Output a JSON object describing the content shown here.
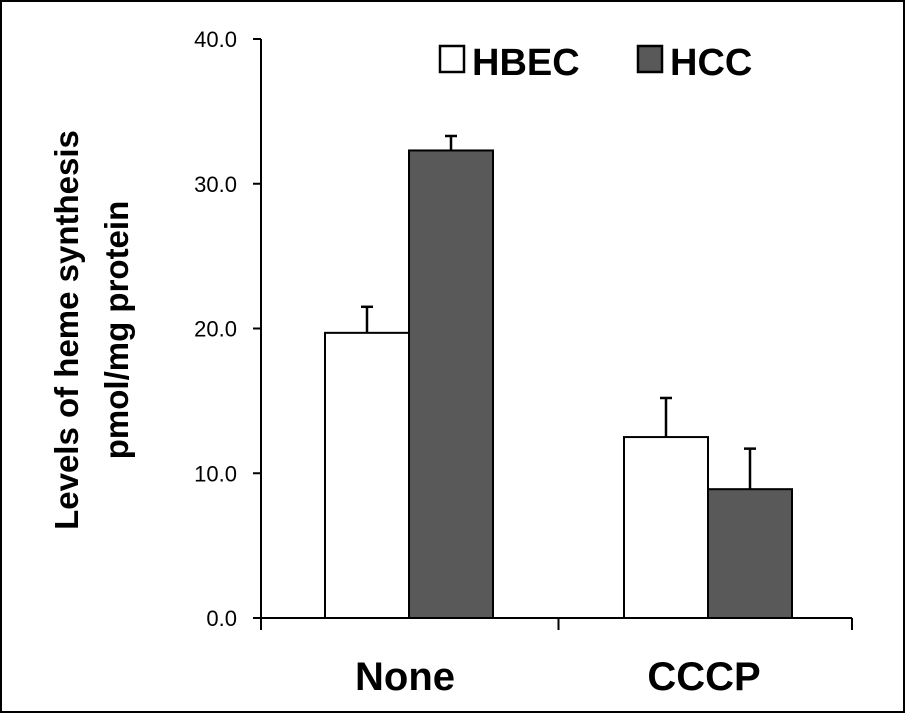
{
  "chart_data": {
    "type": "bar",
    "categories": [
      "None",
      "CCCP"
    ],
    "series": [
      {
        "name": "HBEC",
        "values": [
          19.7,
          12.5
        ],
        "errors": [
          1.8,
          2.7
        ],
        "color": "#ffffff"
      },
      {
        "name": "HCC",
        "values": [
          32.3,
          8.9
        ],
        "errors": [
          1.0,
          2.8
        ],
        "color": "#595959"
      }
    ],
    "ylabel_lines": [
      "Levels of heme synthesis",
      "pmol/mg protein"
    ],
    "xlabel": "",
    "ylim": [
      0,
      40
    ],
    "yticks": [
      "0.0",
      "10.0",
      "20.0",
      "30.0",
      "40.0"
    ],
    "ytick_values": [
      0,
      10,
      20,
      30,
      40
    ],
    "grid": false,
    "legend_position": "top-right",
    "frame_color": "#000000"
  }
}
